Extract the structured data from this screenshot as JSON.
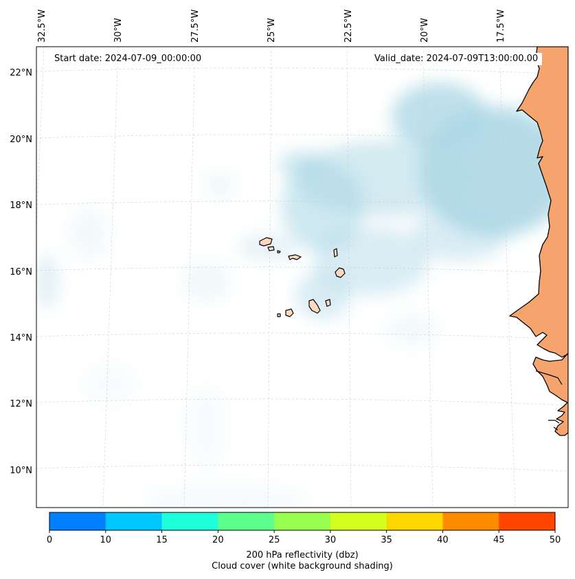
{
  "map": {
    "start_date": "Start date: 2024-07-09_00:00:00",
    "valid_date": "Valid_date: 2024-07-09T13:00:00.00",
    "lon_labels": [
      "32.5°W",
      "30°W",
      "27.5°W",
      "25°W",
      "22.5°W",
      "20°W",
      "17.5°W"
    ],
    "lat_labels": [
      "22°N",
      "20°N",
      "18°N",
      "16°N",
      "14°N",
      "12°N",
      "10°N"
    ],
    "colors": {
      "land": "#f4a46c",
      "cloud": "#aed8e6",
      "island": "#fbd9bf",
      "grid": "#cccccc"
    }
  },
  "colorbar": {
    "ticks": [
      "0",
      "10",
      "15",
      "20",
      "25",
      "30",
      "35",
      "40",
      "45",
      "50"
    ],
    "colors": [
      "#0080ff",
      "#00c8ff",
      "#1effdc",
      "#5dff8c",
      "#98ff50",
      "#d4ff1e",
      "#ffd700",
      "#ff8c00",
      "#ff4500"
    ],
    "title": "200 hPa reflectivity (dbz)",
    "subtitle": "Cloud cover (white background shading)"
  }
}
